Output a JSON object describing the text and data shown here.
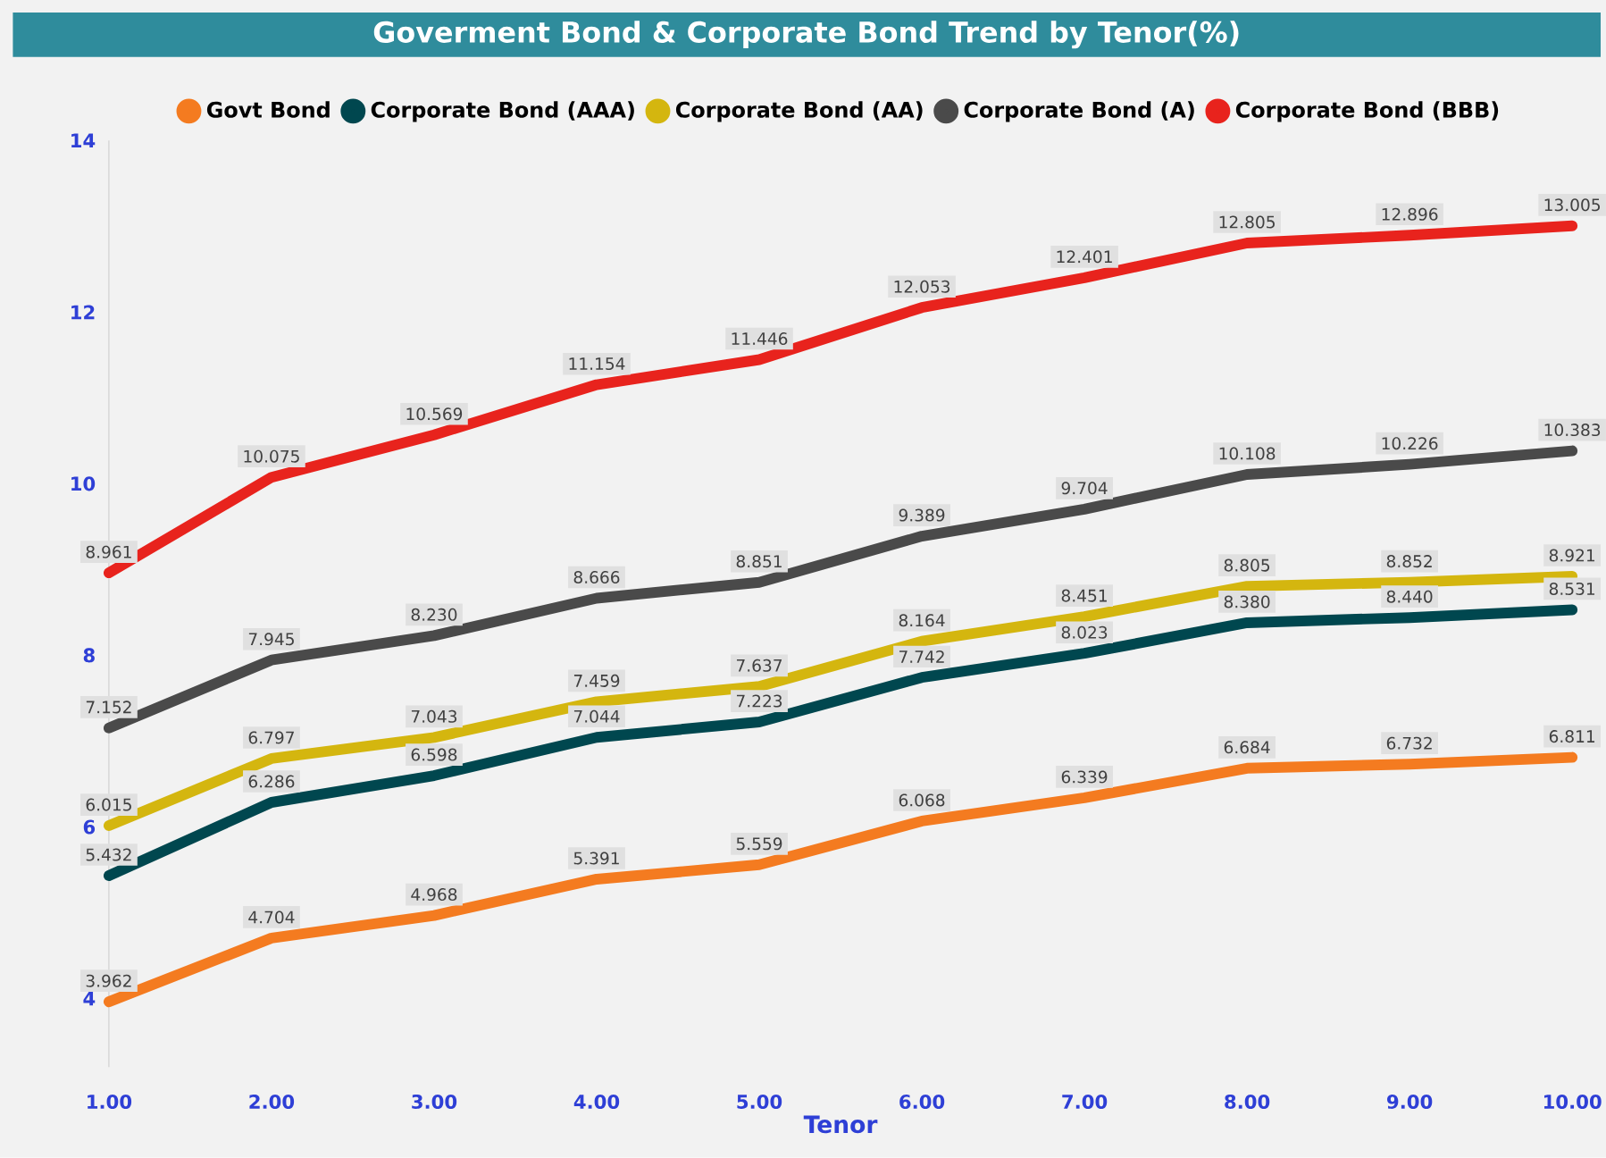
{
  "chart_data": {
    "type": "line",
    "title": "Goverment Bond & Corporate Bond Trend by Tenor(%)",
    "xlabel": "Tenor",
    "x": [
      1,
      2,
      3,
      4,
      5,
      6,
      7,
      8,
      9,
      10
    ],
    "series": [
      {
        "name": "Govt Bond",
        "color": "#f47b20",
        "values": [
          3.962,
          4.704,
          4.968,
          5.391,
          5.559,
          6.068,
          6.339,
          6.684,
          6.732,
          6.811
        ],
        "value_labels": [
          "3.962",
          "4.704",
          "4.968",
          "5.391",
          "5.559",
          "6.068",
          "6.339",
          "6.684",
          "6.732",
          "6.811"
        ]
      },
      {
        "name": "Corporate Bond (AAA)",
        "color": "#00474f",
        "values": [
          5.432,
          6.286,
          6.598,
          7.044,
          7.223,
          7.742,
          8.023,
          8.38,
          8.44,
          8.531
        ],
        "value_labels": [
          "5.432",
          "6.286",
          "6.598",
          "7.044",
          "7.223",
          "7.742",
          "8.023",
          "8.380",
          "8.440",
          "8.531"
        ]
      },
      {
        "name": "Corporate Bond (AA)",
        "color": "#d4b60f",
        "values": [
          6.015,
          6.797,
          7.043,
          7.459,
          7.637,
          8.164,
          8.451,
          8.805,
          8.852,
          8.921
        ],
        "value_labels": [
          "6.015",
          "6.797",
          "7.043",
          "7.459",
          "7.637",
          "8.164",
          "8.451",
          "8.805",
          "8.852",
          "8.921"
        ]
      },
      {
        "name": "Corporate Bond (A)",
        "color": "#4a4a4a",
        "values": [
          7.152,
          7.945,
          8.23,
          8.666,
          8.851,
          9.389,
          9.704,
          10.108,
          10.226,
          10.383
        ],
        "value_labels": [
          "7.152",
          "7.945",
          "8.230",
          "8.666",
          "8.851",
          "9.389",
          "9.704",
          "10.108",
          "10.226",
          "10.383"
        ]
      },
      {
        "name": "Corporate Bond (BBB)",
        "color": "#e8231d",
        "values": [
          8.961,
          10.075,
          10.569,
          11.154,
          11.446,
          12.053,
          12.401,
          12.805,
          12.896,
          13.005
        ],
        "value_labels": [
          "8.961",
          "10.075",
          "10.569",
          "11.154",
          "11.446",
          "12.053",
          "12.401",
          "12.805",
          "12.896",
          "13.005"
        ]
      }
    ],
    "xlim": [
      1,
      10
    ],
    "xticks": [
      {
        "value": 1,
        "label": "1.00"
      },
      {
        "value": 2,
        "label": "2.00"
      },
      {
        "value": 3,
        "label": "3.00"
      },
      {
        "value": 4,
        "label": "4.00"
      },
      {
        "value": 5,
        "label": "5.00"
      },
      {
        "value": 6,
        "label": "6.00"
      },
      {
        "value": 7,
        "label": "7.00"
      },
      {
        "value": 8,
        "label": "8.00"
      },
      {
        "value": 9,
        "label": "9.00"
      },
      {
        "value": 10,
        "label": "10.00"
      }
    ],
    "ylim": [
      3.2,
      14
    ],
    "yticks": [
      4,
      6,
      8,
      10,
      12,
      14
    ],
    "legend": "top",
    "grid": false,
    "line_style": "solid"
  }
}
